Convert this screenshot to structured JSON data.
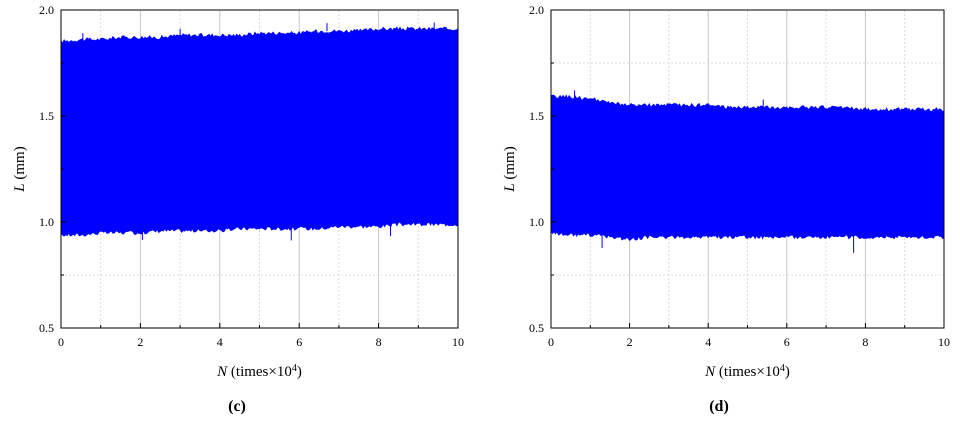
{
  "chart_data": [
    {
      "type": "area",
      "panel_label": "c",
      "xlabel_var": "N",
      "xlabel_unit": " (times×10",
      "xlabel_exp": "4",
      "xlabel_close": ")",
      "ylabel_var": "L",
      "ylabel_unit": " (mm)",
      "xlim": [
        0,
        10
      ],
      "ylim": [
        0.5,
        2.0
      ],
      "xticks": [
        0,
        2,
        4,
        6,
        8,
        10
      ],
      "yticks": [
        "0.5",
        "1.0",
        "1.5",
        "2.0"
      ],
      "grid": true,
      "color": "#0000ff",
      "series": [
        {
          "x": [
            0,
            0.5,
            1,
            1.5,
            2,
            2.5,
            3,
            3.5,
            4,
            4.5,
            5,
            5.5,
            6,
            6.5,
            7,
            7.5,
            8,
            8.5,
            9,
            9.5,
            10
          ],
          "upper": [
            1.85,
            1.86,
            1.86,
            1.87,
            1.87,
            1.87,
            1.88,
            1.88,
            1.88,
            1.88,
            1.89,
            1.89,
            1.89,
            1.9,
            1.9,
            1.9,
            1.91,
            1.91,
            1.91,
            1.91,
            1.91
          ],
          "lower": [
            0.94,
            0.94,
            0.95,
            0.95,
            0.95,
            0.96,
            0.96,
            0.96,
            0.96,
            0.97,
            0.97,
            0.97,
            0.97,
            0.97,
            0.98,
            0.98,
            0.98,
            0.99,
            0.99,
            0.99,
            0.99
          ]
        }
      ]
    },
    {
      "type": "area",
      "panel_label": "d",
      "xlabel_var": "N",
      "xlabel_unit": " (times×10",
      "xlabel_exp": "4",
      "xlabel_close": ")",
      "ylabel_var": "L",
      "ylabel_unit": " (mm)",
      "xlim": [
        0,
        10
      ],
      "ylim": [
        0.5,
        2.0
      ],
      "xticks": [
        0,
        2,
        4,
        6,
        8,
        10
      ],
      "yticks": [
        "0.5",
        "1.0",
        "1.5",
        "2.0"
      ],
      "grid": true,
      "color": "#0000ff",
      "series": [
        {
          "x": [
            0,
            0.5,
            1,
            1.5,
            2,
            2.5,
            3,
            3.5,
            4,
            4.5,
            5,
            5.5,
            6,
            6.5,
            7,
            7.5,
            8,
            8.5,
            9,
            9.5,
            10
          ],
          "upper": [
            1.59,
            1.59,
            1.58,
            1.56,
            1.55,
            1.55,
            1.55,
            1.55,
            1.55,
            1.54,
            1.54,
            1.54,
            1.54,
            1.54,
            1.54,
            1.54,
            1.53,
            1.53,
            1.53,
            1.53,
            1.53
          ],
          "lower": [
            0.95,
            0.94,
            0.94,
            0.93,
            0.92,
            0.93,
            0.93,
            0.93,
            0.93,
            0.93,
            0.93,
            0.93,
            0.93,
            0.93,
            0.93,
            0.93,
            0.93,
            0.93,
            0.93,
            0.93,
            0.93
          ]
        }
      ]
    }
  ]
}
